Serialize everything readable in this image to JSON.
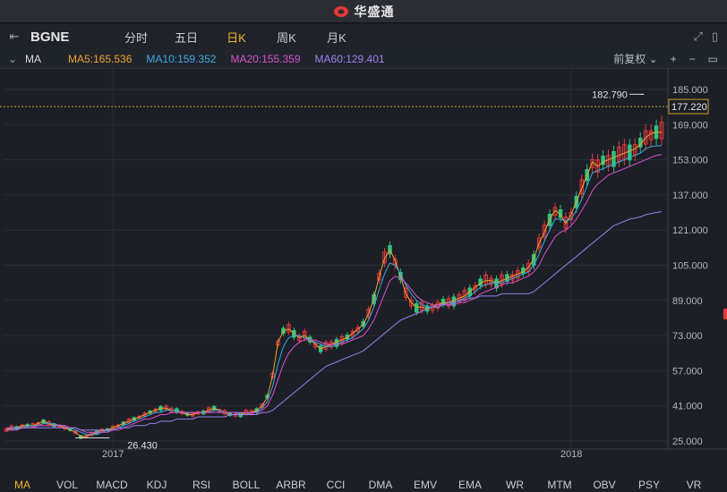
{
  "window": {
    "title": "华盛通"
  },
  "toolbar": {
    "symbol": "BGNE",
    "tabs": [
      {
        "label": "分时",
        "active": false
      },
      {
        "label": "五日",
        "active": false
      },
      {
        "label": "日K",
        "active": true
      },
      {
        "label": "周K",
        "active": false
      },
      {
        "label": "月K",
        "active": false
      }
    ]
  },
  "ma_bar": {
    "name": "MA",
    "items": [
      {
        "label": "MA5:165.536",
        "color": "#f0a030"
      },
      {
        "label": "MA10:159.352",
        "color": "#3aa8e0"
      },
      {
        "label": "MA20:155.359",
        "color": "#d850d0"
      },
      {
        "label": "MA60:129.401",
        "color": "#9a80f0"
      }
    ],
    "adjust_label": "前复权"
  },
  "colors": {
    "up": "#e8383a",
    "down": "#2ec27e",
    "ma5": "#f0a030",
    "ma10": "#3aa8e0",
    "ma20": "#d850d0",
    "ma60": "#9a80f0",
    "accent": "#f0b429"
  },
  "chart_data": {
    "type": "line",
    "symbol": "BGNE",
    "y_ticks": [
      "185.000",
      "169.000",
      "153.000",
      "137.000",
      "121.000",
      "105.000",
      "89.000",
      "73.000",
      "57.000",
      "41.000",
      "25.000"
    ],
    "ylim": [
      25,
      185
    ],
    "x_labels": [
      {
        "label": "2017",
        "index": 20
      },
      {
        "label": "2018",
        "index": 106
      }
    ],
    "n_points": 124,
    "annotations": {
      "high": {
        "label": "182.790",
        "value": 182.79,
        "index": 120
      },
      "low": {
        "label": "26.430",
        "value": 26.43,
        "index": 16
      },
      "last_price": {
        "label": "177.220",
        "value": 177.22
      }
    },
    "series": [
      {
        "name": "MA5",
        "values": [
          30,
          31,
          31,
          32,
          32,
          32,
          33,
          34,
          33,
          32,
          32,
          31,
          30,
          29,
          27,
          27,
          28,
          29,
          30,
          30,
          31,
          32,
          33,
          34,
          35,
          36,
          37,
          38,
          39,
          40,
          40,
          39,
          39,
          38,
          37,
          37,
          38,
          38,
          39,
          40,
          39,
          38,
          37,
          37,
          37,
          38,
          38,
          39,
          41,
          45,
          55,
          70,
          75,
          76,
          74,
          72,
          73,
          71,
          69,
          67,
          68,
          69,
          70,
          71,
          72,
          74,
          76,
          78,
          83,
          90,
          100,
          108,
          112,
          107,
          100,
          92,
          88,
          86,
          86,
          85,
          86,
          87,
          88,
          88,
          89,
          90,
          91,
          93,
          95,
          97,
          98,
          98,
          97,
          98,
          99,
          100,
          101,
          102,
          104,
          108,
          115,
          120,
          126,
          130,
          128,
          124,
          128,
          134,
          140,
          146,
          152,
          150,
          152,
          153,
          154,
          155,
          156,
          157,
          158,
          160,
          163,
          165,
          165.5,
          165.5
        ]
      },
      {
        "name": "MA10",
        "values": [
          30,
          30,
          31,
          31,
          32,
          32,
          32,
          33,
          33,
          33,
          32,
          32,
          31,
          30,
          29,
          28,
          28,
          28,
          29,
          30,
          30,
          31,
          32,
          33,
          34,
          35,
          36,
          37,
          38,
          38,
          39,
          39,
          39,
          38,
          38,
          38,
          38,
          38,
          38,
          39,
          39,
          38,
          38,
          38,
          37,
          37,
          38,
          38,
          40,
          43,
          50,
          60,
          68,
          72,
          73,
          73,
          72,
          71,
          70,
          69,
          68,
          68,
          69,
          70,
          71,
          72,
          74,
          76,
          80,
          86,
          94,
          101,
          106,
          105,
          101,
          96,
          92,
          89,
          87,
          86,
          86,
          86,
          87,
          87,
          88,
          89,
          90,
          91,
          93,
          95,
          96,
          97,
          97,
          97,
          98,
          99,
          100,
          101,
          102,
          105,
          110,
          116,
          121,
          126,
          126,
          125,
          126,
          130,
          135,
          141,
          147,
          148,
          149,
          150,
          151,
          152,
          153,
          154,
          155,
          156,
          158,
          159,
          159.3,
          159.4
        ]
      },
      {
        "name": "MA20",
        "values": [
          30,
          30,
          30,
          31,
          31,
          31,
          32,
          32,
          32,
          32,
          32,
          32,
          31,
          31,
          30,
          29,
          29,
          29,
          29,
          29,
          30,
          30,
          31,
          32,
          33,
          34,
          35,
          35,
          36,
          37,
          37,
          38,
          38,
          38,
          38,
          38,
          38,
          38,
          38,
          38,
          38,
          38,
          38,
          38,
          38,
          38,
          38,
          38,
          39,
          41,
          46,
          53,
          60,
          65,
          68,
          70,
          71,
          71,
          71,
          70,
          69,
          69,
          69,
          69,
          70,
          71,
          72,
          73,
          76,
          80,
          86,
          92,
          98,
          100,
          99,
          97,
          94,
          91,
          89,
          88,
          87,
          87,
          87,
          87,
          87,
          88,
          88,
          89,
          90,
          92,
          93,
          94,
          95,
          96,
          97,
          97,
          98,
          99,
          100,
          102,
          105,
          110,
          114,
          118,
          120,
          121,
          123,
          126,
          130,
          134,
          139,
          142,
          144,
          146,
          147,
          148,
          149,
          150,
          151,
          152,
          153,
          154,
          155,
          155.4
        ]
      },
      {
        "name": "MA60",
        "values": [
          31,
          31,
          31,
          31,
          31,
          31,
          31,
          31,
          31,
          31,
          31,
          31,
          31,
          31,
          30,
          30,
          30,
          30,
          30,
          30,
          30,
          31,
          31,
          31,
          32,
          32,
          32,
          33,
          33,
          34,
          34,
          34,
          35,
          35,
          35,
          35,
          36,
          36,
          36,
          36,
          36,
          36,
          37,
          37,
          37,
          37,
          37,
          37,
          38,
          38,
          39,
          41,
          43,
          45,
          47,
          49,
          51,
          53,
          55,
          57,
          59,
          60,
          61,
          62,
          63,
          64,
          65,
          66,
          68,
          70,
          72,
          74,
          76,
          78,
          80,
          81,
          82,
          83,
          84,
          85,
          86,
          86,
          87,
          88,
          88,
          89,
          89,
          90,
          90,
          91,
          91,
          91,
          91,
          92,
          92,
          92,
          92,
          92,
          92,
          93,
          95,
          97,
          99,
          101,
          103,
          105,
          107,
          109,
          111,
          113,
          115,
          117,
          119,
          121,
          123,
          124,
          125,
          126,
          126.5,
          127,
          128,
          128.5,
          129,
          129.4
        ]
      }
    ]
  },
  "bottom_bar": {
    "indicators": [
      {
        "label": "MA",
        "active": true
      },
      {
        "label": "VOL",
        "active": false
      },
      {
        "label": "MACD",
        "active": false
      },
      {
        "label": "KDJ",
        "active": false
      },
      {
        "label": "RSI",
        "active": false
      },
      {
        "label": "BOLL",
        "active": false
      },
      {
        "label": "ARBR",
        "active": false
      },
      {
        "label": "CCI",
        "active": false
      },
      {
        "label": "DMA",
        "active": false
      },
      {
        "label": "EMV",
        "active": false
      },
      {
        "label": "EMA",
        "active": false
      },
      {
        "label": "WR",
        "active": false
      },
      {
        "label": "MTM",
        "active": false
      },
      {
        "label": "OBV",
        "active": false
      },
      {
        "label": "PSY",
        "active": false
      },
      {
        "label": "VR",
        "active": false
      }
    ]
  }
}
